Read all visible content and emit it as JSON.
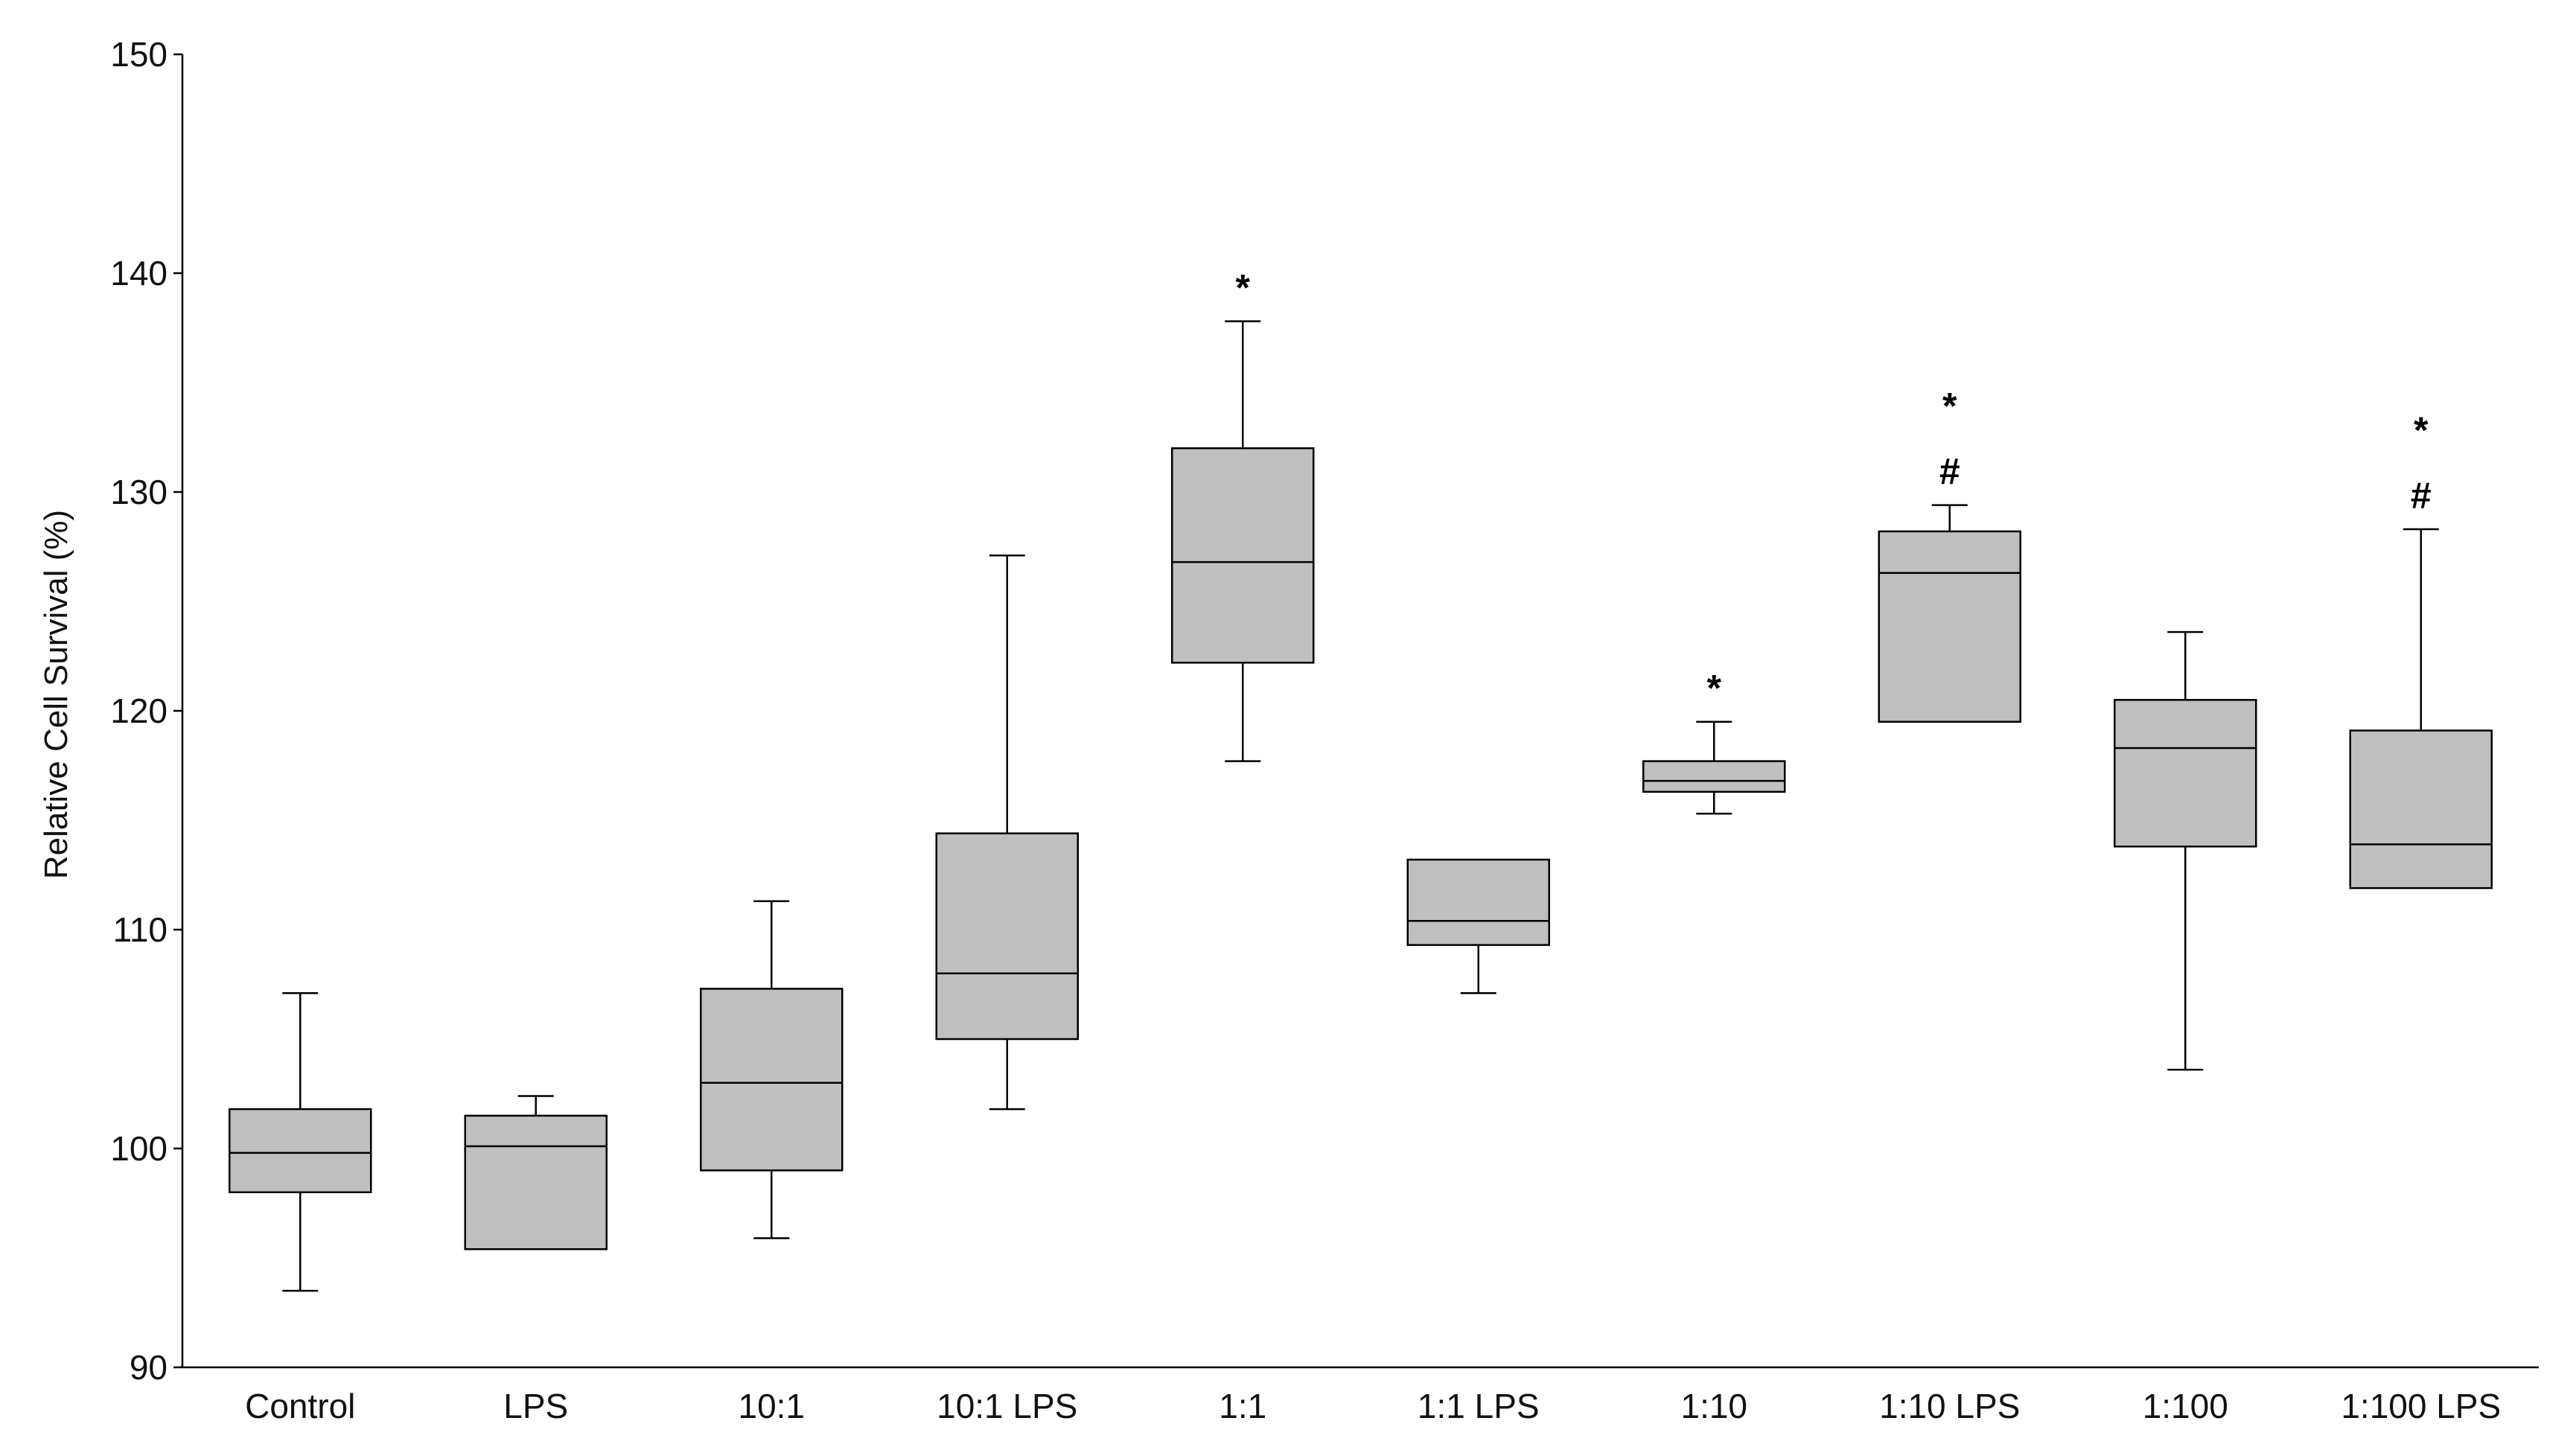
{
  "chart_data": {
    "type": "box",
    "title": "",
    "xlabel": "",
    "ylabel": "Relative Cell Survival (%)",
    "ylim": [
      90,
      150
    ],
    "yticks": [
      90,
      100,
      110,
      120,
      130,
      140,
      150
    ],
    "grid": false,
    "legend": "none",
    "box_color": "#bfbfbf",
    "categories": [
      "Control",
      "LPS",
      "10:1",
      "10:1 LPS",
      "1:1",
      "1:1 LPS",
      "1:10",
      "1:10 LPS",
      "1:100",
      "1:100 LPS"
    ],
    "boxes": [
      {
        "min": 93.5,
        "q1": 98.0,
        "median": 99.8,
        "q3": 101.8,
        "max": 107.1,
        "annotations": []
      },
      {
        "min": 95.4,
        "q1": 95.4,
        "median": 100.1,
        "q3": 101.5,
        "max": 102.4,
        "annotations": []
      },
      {
        "min": 95.9,
        "q1": 99.0,
        "median": 103.0,
        "q3": 107.3,
        "max": 111.3,
        "annotations": []
      },
      {
        "min": 101.8,
        "q1": 105.0,
        "median": 108.0,
        "q3": 114.4,
        "max": 127.1,
        "annotations": []
      },
      {
        "min": 117.7,
        "q1": 122.2,
        "median": 126.8,
        "q3": 132.0,
        "max": 137.8,
        "annotations": [
          "*"
        ]
      },
      {
        "min": 107.1,
        "q1": 109.3,
        "median": 110.4,
        "q3": 113.2,
        "max": 113.2,
        "annotations": []
      },
      {
        "min": 115.3,
        "q1": 116.3,
        "median": 116.8,
        "q3": 117.7,
        "max": 119.5,
        "annotations": [
          "*"
        ]
      },
      {
        "min": 119.5,
        "q1": 119.5,
        "median": 126.3,
        "q3": 128.2,
        "max": 129.4,
        "annotations": [
          "#",
          "*"
        ]
      },
      {
        "min": 103.6,
        "q1": 113.8,
        "median": 118.3,
        "q3": 120.5,
        "max": 123.6,
        "annotations": []
      },
      {
        "min": 111.9,
        "q1": 111.9,
        "median": 113.9,
        "q3": 119.1,
        "max": 128.3,
        "annotations": [
          "#",
          "*"
        ]
      }
    ]
  }
}
